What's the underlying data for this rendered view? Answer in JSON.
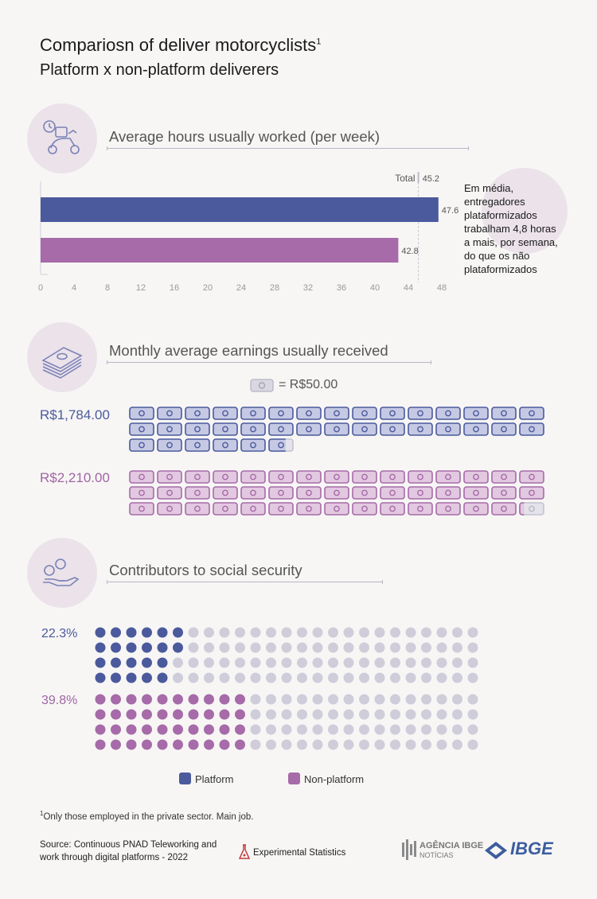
{
  "header": {
    "title": "Compariosn of deliver motorcyclists",
    "title_sup": "1",
    "subtitle": "Platform x non-platform deliverers"
  },
  "colors": {
    "platform": "#4b5a9c",
    "nonplatform": "#a66ba8",
    "empty": "#cfcdd9",
    "platform_note": "#4b5a9c",
    "nonplatform_note": "#a066a3"
  },
  "hours": {
    "title": "Average hours usually worked (per week)",
    "total_label": "Total",
    "total_value": "45.2",
    "note": [
      "Em média,",
      "entregadores",
      "plataformizados",
      "trabalham 4,8 horas",
      "a mais, por semana,",
      "do que os não",
      "plataformizados"
    ]
  },
  "earnings": {
    "title": "Monthly average earnings usually received",
    "unit_label": "= R$50.00",
    "platform_label": "R$1,784.00",
    "nonplatform_label": "R$2,210.00"
  },
  "social": {
    "title": "Contributors to social security",
    "platform_label": "22.3%",
    "nonplatform_label": "39.8%"
  },
  "legend": {
    "platform": "Platform",
    "nonplatform": "Non-platform"
  },
  "footer": {
    "footnote_sup": "1",
    "footnote": "Only those employed in the private sector. Main job.",
    "source_line1": "Source: Continuous PNAD Teleworking and",
    "source_line2": "work through digital platforms - 2022",
    "experimental": "Experimental Statistics",
    "agencia_line1": "AGÊNCIA IBGE",
    "agencia_line2": "NOTÍCIAS",
    "ibge": "IBGE"
  },
  "chart_data": [
    {
      "type": "bar",
      "title": "Average hours usually worked (per week)",
      "orientation": "horizontal",
      "categories": [
        "Platform",
        "Non-platform"
      ],
      "values": [
        47.6,
        42.8
      ],
      "value_labels": [
        "47.6",
        "42.8"
      ],
      "reference_line": {
        "label": "Total",
        "value": 45.2
      },
      "xlim": [
        0,
        48
      ],
      "xticks": [
        0,
        4,
        8,
        12,
        16,
        20,
        24,
        28,
        32,
        36,
        40,
        44,
        48
      ],
      "xtick_labels": [
        "0",
        "4",
        "8",
        "12",
        "16",
        "20",
        "24",
        "28",
        "32",
        "36",
        "40",
        "44",
        "48"
      ]
    },
    {
      "type": "pictogram",
      "title": "Monthly average earnings usually received",
      "unit_value": 50,
      "series": [
        {
          "name": "Platform",
          "value": 1784,
          "label": "R$1,784.00"
        },
        {
          "name": "Non-platform",
          "value": 2210,
          "label": "R$2,210.00"
        }
      ]
    },
    {
      "type": "waffle",
      "title": "Contributors to social security",
      "series": [
        {
          "name": "Platform",
          "value": 22.3,
          "label": "22.3%"
        },
        {
          "name": "Non-platform",
          "value": 39.8,
          "label": "39.8%"
        }
      ]
    }
  ]
}
